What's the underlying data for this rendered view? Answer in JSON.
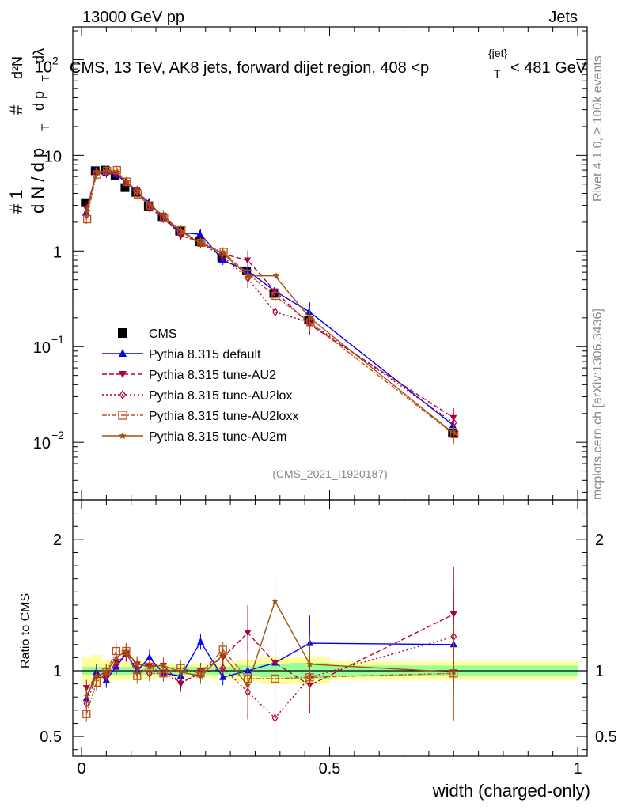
{
  "header": {
    "left": "13000 GeV pp",
    "right": "Jets"
  },
  "side_labels": {
    "rivet": "Rivet 4.1.0, ≥ 100k events",
    "mcplots": "mcplots.cern.ch [arXiv:1306.3436]"
  },
  "watermark": "(CMS_2021_I1920187)",
  "chart_data": {
    "type": "line",
    "title": "CMS, 13 TeV, AK8 jets, forward dijet region, 408 <p_T^{jet}< 481 GeV",
    "title_parts": {
      "prefix": "CMS, 13 TeV, AK8 jets, forward dijet region, 408 <p",
      "sub": "T",
      "sup": "{jet}",
      "suffix": "< 481 GeV"
    },
    "xlabel": "width (charged-only)",
    "ylabel": "1/N dN/dp_T d²N/dp_T dλ",
    "ylabel_parts": {
      "num_top": "# 1",
      "den_top": "d N / d p",
      "den_sub": "T",
      "hash2": "#",
      "num2": "d²N",
      "den2": "d p",
      "den2_sub": "T",
      "den2_tail": "dλ"
    },
    "xlim": [
      0,
      1
    ],
    "ylim_log": [
      0.0025,
      220
    ],
    "x_ticks": [
      "0",
      "0.5",
      "1"
    ],
    "y_ticks": [
      {
        "value": 0.01,
        "base": "10",
        "exp": "−2"
      },
      {
        "value": 0.1,
        "base": "10",
        "exp": "−1"
      },
      {
        "value": 1,
        "base": "1",
        "exp": ""
      },
      {
        "value": 10,
        "base": "10",
        "exp": ""
      },
      {
        "value": 100,
        "base": "10",
        "exp": "2"
      }
    ],
    "x": [
      0.01,
      0.03,
      0.05,
      0.07,
      0.09,
      0.112,
      0.137,
      0.165,
      0.2,
      0.24,
      0.285,
      0.335,
      0.39,
      0.46,
      0.75
    ],
    "series": [
      {
        "name": "CMS",
        "color": "#000000",
        "marker": "square-filled",
        "dash": "",
        "values": [
          3.2,
          6.9,
          7.0,
          6.1,
          4.6,
          4.1,
          2.9,
          2.25,
          1.62,
          1.25,
          0.85,
          0.62,
          0.36,
          0.19,
          0.0125
        ]
      },
      {
        "name": "Pythia 8.315 default",
        "color": "#0000ff",
        "marker": "triangle-up-filled",
        "dash": "",
        "values": [
          2.5,
          6.8,
          6.5,
          6.3,
          5.2,
          4.1,
          3.2,
          2.2,
          1.55,
          1.5,
          0.8,
          0.62,
          0.38,
          0.23,
          0.015
        ]
      },
      {
        "name": "Pythia 8.315 tune-AU2",
        "color": "#b0003c",
        "marker": "triangle-down-filled",
        "dash": "6,3",
        "values": [
          2.8,
          6.5,
          6.6,
          6.5,
          5.2,
          4.3,
          3.0,
          2.35,
          1.45,
          1.25,
          0.93,
          0.8,
          0.38,
          0.17,
          0.018
        ]
      },
      {
        "name": "Pythia 8.315 tune-AU2lox",
        "color": "#b0003c",
        "marker": "diamond-open",
        "dash": "2,3",
        "values": [
          2.4,
          6.6,
          6.8,
          6.4,
          5.2,
          4.2,
          2.85,
          2.2,
          1.48,
          1.22,
          0.87,
          0.52,
          0.23,
          0.18,
          0.016
        ]
      },
      {
        "name": "Pythia 8.315 tune-AU2loxx",
        "color": "#c0501e",
        "marker": "square-open",
        "dash": "6,2,2,2",
        "values": [
          2.15,
          6.3,
          6.9,
          7.0,
          5.3,
          3.9,
          3.0,
          2.2,
          1.65,
          1.22,
          0.98,
          0.58,
          0.34,
          0.18,
          0.0122
        ]
      },
      {
        "name": "Pythia 8.315 tune-AU2m",
        "color": "#a0520a",
        "marker": "star",
        "dash": "",
        "values": [
          2.6,
          6.6,
          6.9,
          6.7,
          5.3,
          4.3,
          3.0,
          2.35,
          1.6,
          1.2,
          0.95,
          0.55,
          0.55,
          0.2,
          0.0124
        ]
      }
    ],
    "ratio": {
      "ylabel": "Ratio to CMS",
      "ylim": [
        0.35,
        2.3
      ],
      "y_ticks": [
        {
          "value": 0.5,
          "label": "0.5"
        },
        {
          "value": 1,
          "label": "1"
        },
        {
          "value": 2,
          "label": "2"
        }
      ],
      "series": [
        {
          "name": "Pythia 8.315 default",
          "values": [
            0.79,
            0.99,
            0.93,
            1.03,
            1.13,
            1.0,
            1.1,
            0.98,
            0.96,
            1.22,
            0.95,
            1.0,
            1.06,
            1.21,
            1.2
          ]
        },
        {
          "name": "Pythia 8.315 tune-AU2",
          "values": [
            0.87,
            0.95,
            0.95,
            1.07,
            1.13,
            1.05,
            1.04,
            1.04,
            0.9,
            1.0,
            1.1,
            1.29,
            1.06,
            0.89,
            1.43
          ]
        },
        {
          "name": "Pythia 8.315 tune-AU2lox",
          "values": [
            0.75,
            0.96,
            0.98,
            1.05,
            1.13,
            1.02,
            0.98,
            0.98,
            0.91,
            0.98,
            1.02,
            0.84,
            0.64,
            0.95,
            1.26
          ]
        },
        {
          "name": "Pythia 8.315 tune-AU2loxx",
          "values": [
            0.67,
            0.91,
            0.99,
            1.15,
            1.15,
            0.96,
            1.03,
            0.98,
            1.02,
            0.98,
            1.16,
            0.94,
            0.94,
            0.95,
            0.98
          ]
        },
        {
          "name": "Pythia 8.315 tune-AU2m",
          "values": [
            0.81,
            0.96,
            0.99,
            1.1,
            1.15,
            1.05,
            1.03,
            1.04,
            0.99,
            0.96,
            1.12,
            0.89,
            1.53,
            1.05,
            0.99
          ]
        }
      ],
      "bands": [
        {
          "x0": 0.0,
          "x1": 0.02,
          "stat": 0.03,
          "tot": 0.1
        },
        {
          "x0": 0.02,
          "x1": 0.04,
          "stat": 0.03,
          "tot": 0.12
        },
        {
          "x0": 0.04,
          "x1": 0.06,
          "stat": 0.03,
          "tot": 0.08
        },
        {
          "x0": 0.06,
          "x1": 0.08,
          "stat": 0.03,
          "tot": 0.07
        },
        {
          "x0": 0.08,
          "x1": 0.1,
          "stat": 0.03,
          "tot": 0.07
        },
        {
          "x0": 0.1,
          "x1": 0.125,
          "stat": 0.03,
          "tot": 0.07
        },
        {
          "x0": 0.125,
          "x1": 0.15,
          "stat": 0.03,
          "tot": 0.06
        },
        {
          "x0": 0.15,
          "x1": 0.18,
          "stat": 0.03,
          "tot": 0.05
        },
        {
          "x0": 0.18,
          "x1": 0.22,
          "stat": 0.03,
          "tot": 0.05
        },
        {
          "x0": 0.22,
          "x1": 0.26,
          "stat": 0.03,
          "tot": 0.05
        },
        {
          "x0": 0.26,
          "x1": 0.31,
          "stat": 0.03,
          "tot": 0.06
        },
        {
          "x0": 0.31,
          "x1": 0.36,
          "stat": 0.04,
          "tot": 0.08
        },
        {
          "x0": 0.36,
          "x1": 0.42,
          "stat": 0.05,
          "tot": 0.1
        },
        {
          "x0": 0.42,
          "x1": 0.5,
          "stat": 0.06,
          "tot": 0.1
        },
        {
          "x0": 0.5,
          "x1": 1.0,
          "stat": 0.04,
          "tot": 0.07
        }
      ]
    }
  }
}
